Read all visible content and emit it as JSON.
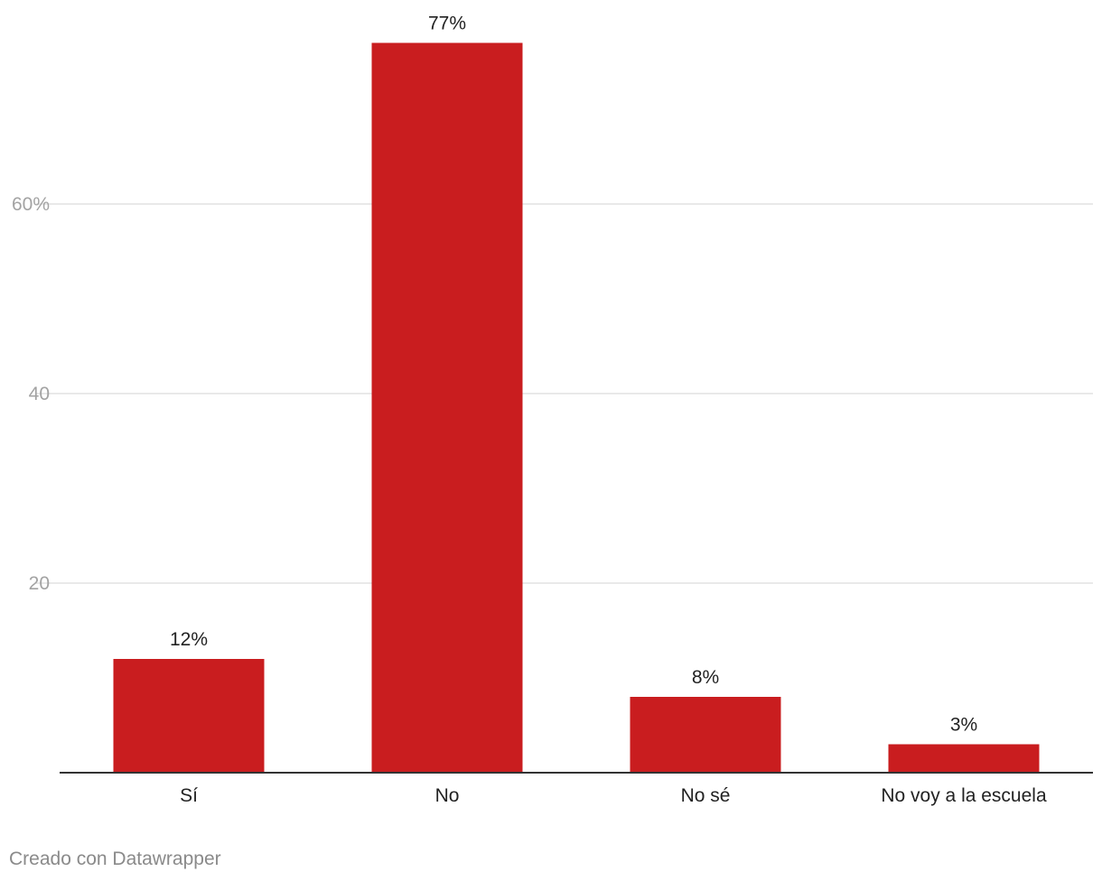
{
  "chart_data": {
    "type": "bar",
    "categories": [
      "Sí",
      "No",
      "No sé",
      "No voy a la escuela"
    ],
    "values": [
      12,
      77,
      8,
      3
    ],
    "value_labels": [
      "12%",
      "77%",
      "8%",
      "3%"
    ],
    "y_ticks": [
      20,
      40,
      60
    ],
    "y_tick_labels": [
      "20",
      "40",
      "60%"
    ],
    "ylim": [
      0,
      80
    ],
    "grid": true,
    "bar_color": "#c91d1f",
    "title": "",
    "xlabel": "",
    "ylabel": ""
  },
  "footer": {
    "credit": "Creado con Datawrapper"
  }
}
